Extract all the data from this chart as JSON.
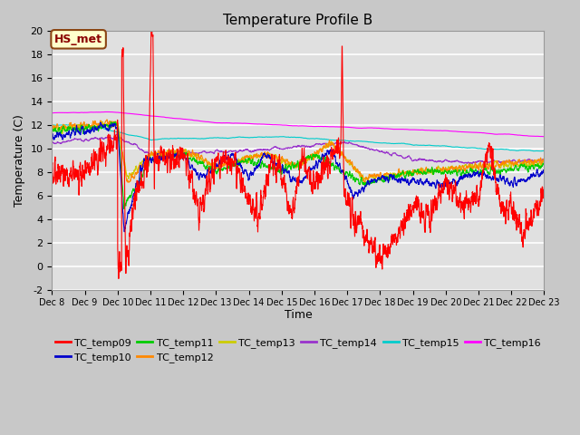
{
  "title": "Temperature Profile B",
  "xlabel": "Time",
  "ylabel": "Temperature (C)",
  "ylim": [
    -2,
    20
  ],
  "series_colors": {
    "TC_temp09": "#ff0000",
    "TC_temp10": "#0000cc",
    "TC_temp11": "#00cc00",
    "TC_temp12": "#ff8800",
    "TC_temp13": "#cccc00",
    "TC_temp14": "#9933cc",
    "TC_temp15": "#00cccc",
    "TC_temp16": "#ff00ff"
  },
  "xtick_labels": [
    "Dec 8",
    "Dec 9",
    "Dec 10",
    "Dec 11",
    "Dec 12",
    "Dec 13",
    "Dec 14",
    "Dec 15",
    "Dec 16",
    "Dec 17",
    "Dec 18",
    "Dec 19",
    "Dec 20",
    "Dec 21",
    "Dec 22",
    "Dec 23"
  ],
  "annotation_text": "HS_met",
  "fig_bg": "#c8c8c8",
  "plot_bg": "#e0e0e0",
  "grid_color": "#ffffff",
  "title_fontsize": 11,
  "axis_label_fontsize": 9,
  "tick_fontsize": 7,
  "legend_fontsize": 8
}
